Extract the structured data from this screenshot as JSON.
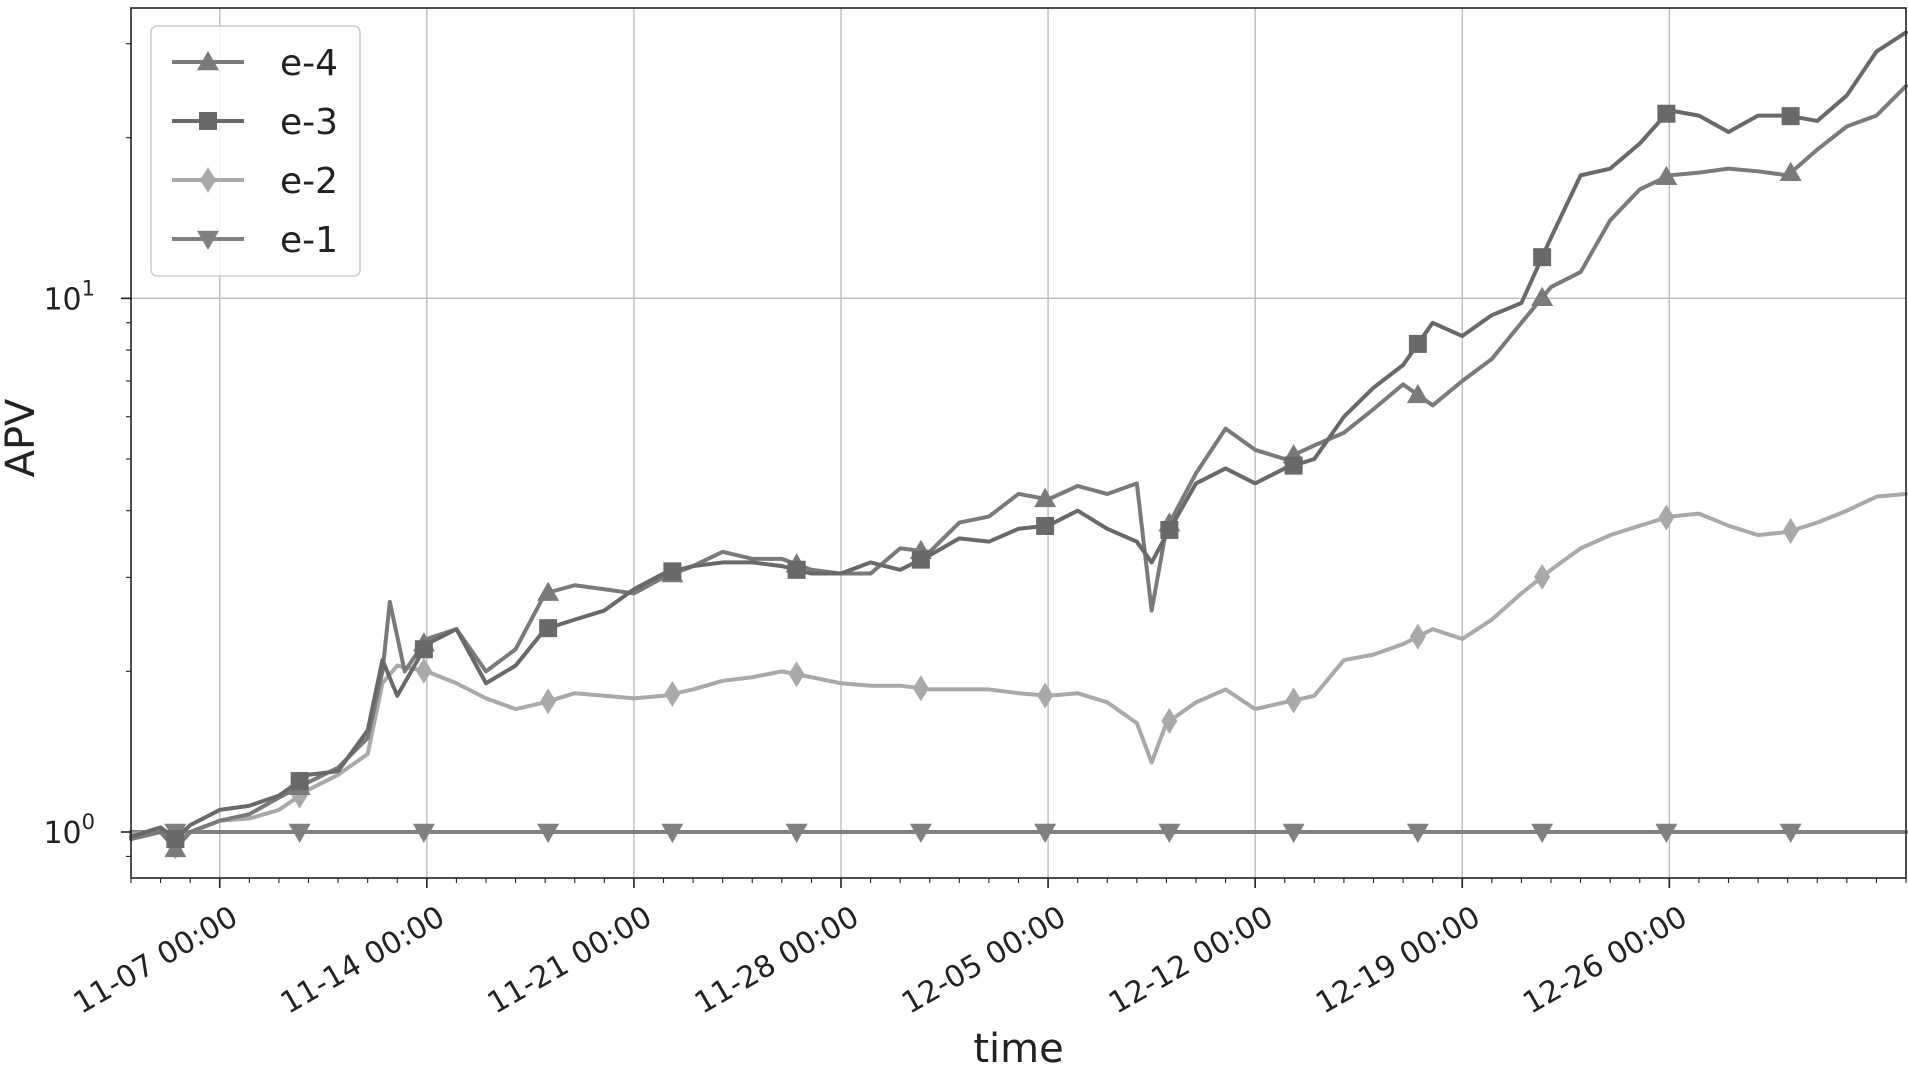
{
  "chart_data": {
    "type": "line",
    "title": "",
    "xlabel": "time",
    "ylabel": "APV",
    "y_scale": "log",
    "ylim": [
      0.82,
      35
    ],
    "xlim": [
      "11-04 00:00",
      "01-03 00:00"
    ],
    "grid": true,
    "legend_position": "top-left",
    "x_tick_labels": [
      "11-07 00:00",
      "11-14 00:00",
      "11-21 00:00",
      "11-28 00:00",
      "12-05 00:00",
      "12-12 00:00",
      "12-19 00:00",
      "12-26 00:00"
    ],
    "x_tick_dates": [
      "11-07",
      "11-14",
      "11-21",
      "11-28",
      "12-05",
      "12-12",
      "12-19",
      "12-26"
    ],
    "y_ticks": [
      {
        "value": 1,
        "base": "10",
        "exp": "0"
      },
      {
        "value": 10,
        "base": "10",
        "exp": "1"
      }
    ],
    "series": [
      {
        "name": "e-4",
        "color": "#7a7a7a",
        "marker": "triangle-up",
        "points": [
          [
            "11-04 00:00",
            0.97
          ],
          [
            "11-05 00:00",
            1.0
          ],
          [
            "11-05 12:00",
            0.93
          ],
          [
            "11-06 00:00",
            1.0
          ],
          [
            "11-07 00:00",
            1.05
          ],
          [
            "11-08 00:00",
            1.08
          ],
          [
            "11-09 00:00",
            1.16
          ],
          [
            "11-10 00:00",
            1.24
          ],
          [
            "11-11 00:00",
            1.32
          ],
          [
            "11-12 00:00",
            1.5
          ],
          [
            "11-12 12:00",
            2.0
          ],
          [
            "11-12 18:00",
            2.7
          ],
          [
            "11-13 06:00",
            2.0
          ],
          [
            "11-14 00:00",
            2.3
          ],
          [
            "11-15 00:00",
            2.4
          ],
          [
            "11-16 00:00",
            2.0
          ],
          [
            "11-17 00:00",
            2.2
          ],
          [
            "11-18 00:00",
            2.8
          ],
          [
            "11-19 00:00",
            2.9
          ],
          [
            "11-20 00:00",
            2.85
          ],
          [
            "11-21 00:00",
            2.8
          ],
          [
            "11-22 00:00",
            3.0
          ],
          [
            "11-23 00:00",
            3.15
          ],
          [
            "11-24 00:00",
            3.35
          ],
          [
            "11-25 00:00",
            3.25
          ],
          [
            "11-26 00:00",
            3.25
          ],
          [
            "11-27 00:00",
            3.1
          ],
          [
            "11-28 00:00",
            3.05
          ],
          [
            "11-29 00:00",
            3.05
          ],
          [
            "11-30 00:00",
            3.4
          ],
          [
            "12-01 00:00",
            3.35
          ],
          [
            "12-02 00:00",
            3.8
          ],
          [
            "12-03 00:00",
            3.9
          ],
          [
            "12-04 00:00",
            4.3
          ],
          [
            "12-05 00:00",
            4.2
          ],
          [
            "12-06 00:00",
            4.45
          ],
          [
            "12-07 00:00",
            4.3
          ],
          [
            "12-08 00:00",
            4.5
          ],
          [
            "12-08 12:00",
            2.6
          ],
          [
            "12-09 00:00",
            3.7
          ],
          [
            "12-10 00:00",
            4.7
          ],
          [
            "12-11 00:00",
            5.7
          ],
          [
            "12-12 00:00",
            5.2
          ],
          [
            "12-13 00:00",
            5.0
          ],
          [
            "12-14 00:00",
            5.3
          ],
          [
            "12-15 00:00",
            5.6
          ],
          [
            "12-16 00:00",
            6.2
          ],
          [
            "12-17 00:00",
            6.9
          ],
          [
            "12-18 00:00",
            6.3
          ],
          [
            "12-19 00:00",
            7.0
          ],
          [
            "12-20 00:00",
            7.7
          ],
          [
            "12-21 00:00",
            9.0
          ],
          [
            "12-22 00:00",
            10.5
          ],
          [
            "12-23 00:00",
            11.2
          ],
          [
            "12-24 00:00",
            14.0
          ],
          [
            "12-25 00:00",
            16.0
          ],
          [
            "12-26 00:00",
            17.0
          ],
          [
            "12-27 00:00",
            17.2
          ],
          [
            "12-28 00:00",
            17.5
          ],
          [
            "12-29 00:00",
            17.3
          ],
          [
            "12-30 00:00",
            17.0
          ],
          [
            "12-31 00:00",
            19.0
          ],
          [
            "01-01 00:00",
            21.0
          ],
          [
            "01-02 00:00",
            22.0
          ],
          [
            "01-03 00:00",
            25.0
          ]
        ]
      },
      {
        "name": "e-3",
        "color": "#696969",
        "marker": "square",
        "points": [
          [
            "11-04 00:00",
            0.98
          ],
          [
            "11-05 00:00",
            1.02
          ],
          [
            "11-05 12:00",
            0.97
          ],
          [
            "11-06 00:00",
            1.03
          ],
          [
            "11-07 00:00",
            1.1
          ],
          [
            "11-08 00:00",
            1.12
          ],
          [
            "11-09 00:00",
            1.17
          ],
          [
            "11-10 00:00",
            1.28
          ],
          [
            "11-11 00:00",
            1.3
          ],
          [
            "11-12 00:00",
            1.55
          ],
          [
            "11-12 12:00",
            2.1
          ],
          [
            "11-13 00:00",
            1.8
          ],
          [
            "11-14 00:00",
            2.25
          ],
          [
            "11-15 00:00",
            2.4
          ],
          [
            "11-16 00:00",
            1.9
          ],
          [
            "11-17 00:00",
            2.05
          ],
          [
            "11-18 00:00",
            2.4
          ],
          [
            "11-19 00:00",
            2.5
          ],
          [
            "11-20 00:00",
            2.6
          ],
          [
            "11-21 00:00",
            2.85
          ],
          [
            "11-22 00:00",
            3.05
          ],
          [
            "11-23 00:00",
            3.15
          ],
          [
            "11-24 00:00",
            3.2
          ],
          [
            "11-25 00:00",
            3.2
          ],
          [
            "11-26 00:00",
            3.15
          ],
          [
            "11-27 00:00",
            3.05
          ],
          [
            "11-28 00:00",
            3.05
          ],
          [
            "11-29 00:00",
            3.2
          ],
          [
            "11-30 00:00",
            3.1
          ],
          [
            "12-01 00:00",
            3.3
          ],
          [
            "12-02 00:00",
            3.55
          ],
          [
            "12-03 00:00",
            3.5
          ],
          [
            "12-04 00:00",
            3.7
          ],
          [
            "12-05 00:00",
            3.75
          ],
          [
            "12-06 00:00",
            4.0
          ],
          [
            "12-07 00:00",
            3.7
          ],
          [
            "12-08 00:00",
            3.5
          ],
          [
            "12-08 12:00",
            3.2
          ],
          [
            "12-09 00:00",
            3.6
          ],
          [
            "12-10 00:00",
            4.5
          ],
          [
            "12-11 00:00",
            4.8
          ],
          [
            "12-12 00:00",
            4.5
          ],
          [
            "12-13 00:00",
            4.8
          ],
          [
            "12-14 00:00",
            5.0
          ],
          [
            "12-15 00:00",
            6.0
          ],
          [
            "12-16 00:00",
            6.8
          ],
          [
            "12-17 00:00",
            7.5
          ],
          [
            "12-18 00:00",
            9.0
          ],
          [
            "12-19 00:00",
            8.5
          ],
          [
            "12-20 00:00",
            9.3
          ],
          [
            "12-21 00:00",
            9.8
          ],
          [
            "12-22 00:00",
            13.0
          ],
          [
            "12-23 00:00",
            17.0
          ],
          [
            "12-24 00:00",
            17.5
          ],
          [
            "12-25 00:00",
            19.5
          ],
          [
            "12-26 00:00",
            22.5
          ],
          [
            "12-27 00:00",
            22.0
          ],
          [
            "12-28 00:00",
            20.5
          ],
          [
            "12-29 00:00",
            22.0
          ],
          [
            "12-30 00:00",
            22.0
          ],
          [
            "12-31 00:00",
            21.5
          ],
          [
            "01-01 00:00",
            24.0
          ],
          [
            "01-02 00:00",
            29.0
          ],
          [
            "01-03 00:00",
            31.5
          ]
        ]
      },
      {
        "name": "e-2",
        "color": "#a9a9a9",
        "marker": "diamond",
        "points": [
          [
            "11-04 00:00",
            0.99
          ],
          [
            "11-05 00:00",
            1.01
          ],
          [
            "11-05 12:00",
            0.94
          ],
          [
            "11-06 00:00",
            1.0
          ],
          [
            "11-07 00:00",
            1.05
          ],
          [
            "11-08 00:00",
            1.06
          ],
          [
            "11-09 00:00",
            1.1
          ],
          [
            "11-10 00:00",
            1.2
          ],
          [
            "11-11 00:00",
            1.28
          ],
          [
            "11-12 00:00",
            1.4
          ],
          [
            "11-12 12:00",
            1.9
          ],
          [
            "11-13 00:00",
            2.05
          ],
          [
            "11-14 00:00",
            2.0
          ],
          [
            "11-15 00:00",
            1.9
          ],
          [
            "11-16 00:00",
            1.78
          ],
          [
            "11-17 00:00",
            1.7
          ],
          [
            "11-18 00:00",
            1.75
          ],
          [
            "11-19 00:00",
            1.82
          ],
          [
            "11-20 00:00",
            1.8
          ],
          [
            "11-21 00:00",
            1.78
          ],
          [
            "11-22 00:00",
            1.8
          ],
          [
            "11-23 00:00",
            1.85
          ],
          [
            "11-24 00:00",
            1.92
          ],
          [
            "11-25 00:00",
            1.95
          ],
          [
            "11-26 00:00",
            2.0
          ],
          [
            "11-27 00:00",
            1.95
          ],
          [
            "11-28 00:00",
            1.9
          ],
          [
            "11-29 00:00",
            1.88
          ],
          [
            "11-30 00:00",
            1.88
          ],
          [
            "12-01 00:00",
            1.85
          ],
          [
            "12-02 00:00",
            1.85
          ],
          [
            "12-03 00:00",
            1.85
          ],
          [
            "12-04 00:00",
            1.82
          ],
          [
            "12-05 00:00",
            1.8
          ],
          [
            "12-06 00:00",
            1.82
          ],
          [
            "12-07 00:00",
            1.75
          ],
          [
            "12-08 00:00",
            1.6
          ],
          [
            "12-08 12:00",
            1.35
          ],
          [
            "12-09 00:00",
            1.6
          ],
          [
            "12-10 00:00",
            1.75
          ],
          [
            "12-11 00:00",
            1.85
          ],
          [
            "12-12 00:00",
            1.7
          ],
          [
            "12-13 00:00",
            1.75
          ],
          [
            "12-14 00:00",
            1.8
          ],
          [
            "12-15 00:00",
            2.1
          ],
          [
            "12-16 00:00",
            2.15
          ],
          [
            "12-17 00:00",
            2.25
          ],
          [
            "12-18 00:00",
            2.4
          ],
          [
            "12-19 00:00",
            2.3
          ],
          [
            "12-20 00:00",
            2.5
          ],
          [
            "12-21 00:00",
            2.8
          ],
          [
            "12-22 00:00",
            3.1
          ],
          [
            "12-23 00:00",
            3.4
          ],
          [
            "12-24 00:00",
            3.6
          ],
          [
            "12-25 00:00",
            3.75
          ],
          [
            "12-26 00:00",
            3.9
          ],
          [
            "12-27 00:00",
            3.95
          ],
          [
            "12-28 00:00",
            3.75
          ],
          [
            "12-29 00:00",
            3.6
          ],
          [
            "12-30 00:00",
            3.65
          ],
          [
            "12-31 00:00",
            3.8
          ],
          [
            "01-01 00:00",
            4.0
          ],
          [
            "01-02 00:00",
            4.25
          ],
          [
            "01-03 00:00",
            4.3
          ]
        ]
      },
      {
        "name": "e-1",
        "color": "#808080",
        "marker": "triangle-down",
        "points": [
          [
            "11-04 00:00",
            1.0
          ],
          [
            "01-03 00:00",
            1.0
          ]
        ]
      }
    ]
  }
}
